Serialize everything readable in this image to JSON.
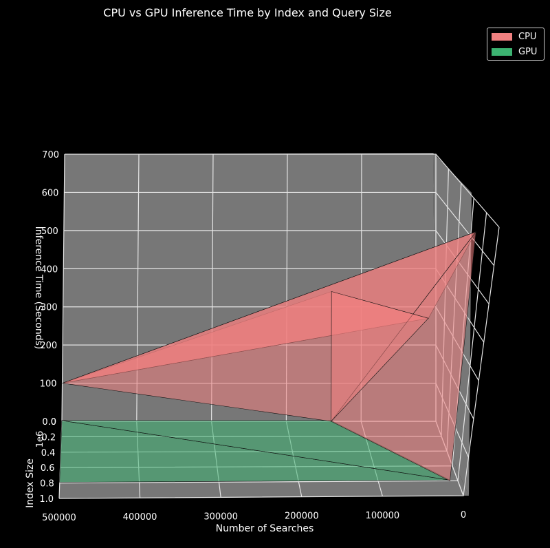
{
  "chart_data": {
    "type": "surface3d",
    "title": "CPU vs GPU Inference Time by Index and Query Size",
    "xlabel": "Number of Searches",
    "ylabel": "Index Size",
    "zlabel": "Inference Time (Seconds)",
    "y_offset_text": "1e6",
    "xlim": [
      500000,
      0
    ],
    "ylim": [
      0,
      1.0
    ],
    "zlim": [
      0,
      700
    ],
    "x_ticks": [
      "500000",
      "400000",
      "300000",
      "200000",
      "100000",
      "0"
    ],
    "y_ticks": [
      "0.0",
      "0.2",
      "0.4",
      "0.6",
      "0.8",
      "1.0"
    ],
    "z_ticks": [
      "0",
      "100",
      "200",
      "300",
      "400",
      "500",
      "600",
      "700"
    ],
    "legend_placement": "top-right",
    "grid": true,
    "series": [
      {
        "name": "CPU",
        "color": "#f08080",
        "points": [
          {
            "searches": 500000,
            "index_size": 0.0,
            "time": 100
          },
          {
            "searches": 140000,
            "index_size": 0.0,
            "time": 340
          },
          {
            "searches": 10000,
            "index_size": 0.0,
            "time": 270
          },
          {
            "searches": 10000,
            "index_size": 0.8,
            "time": 650
          },
          {
            "searches": 140000,
            "index_size": 0.0,
            "time": 0
          },
          {
            "searches": 10000,
            "index_size": 0.8,
            "time": 0
          }
        ]
      },
      {
        "name": "GPU",
        "color": "#3cb371",
        "points": [
          {
            "searches": 500000,
            "index_size": 0.0,
            "time": 2
          },
          {
            "searches": 500000,
            "index_size": 0.8,
            "time": 2
          },
          {
            "searches": 10000,
            "index_size": 0.8,
            "time": 2
          },
          {
            "searches": 140000,
            "index_size": 0.0,
            "time": 2
          }
        ]
      }
    ]
  }
}
